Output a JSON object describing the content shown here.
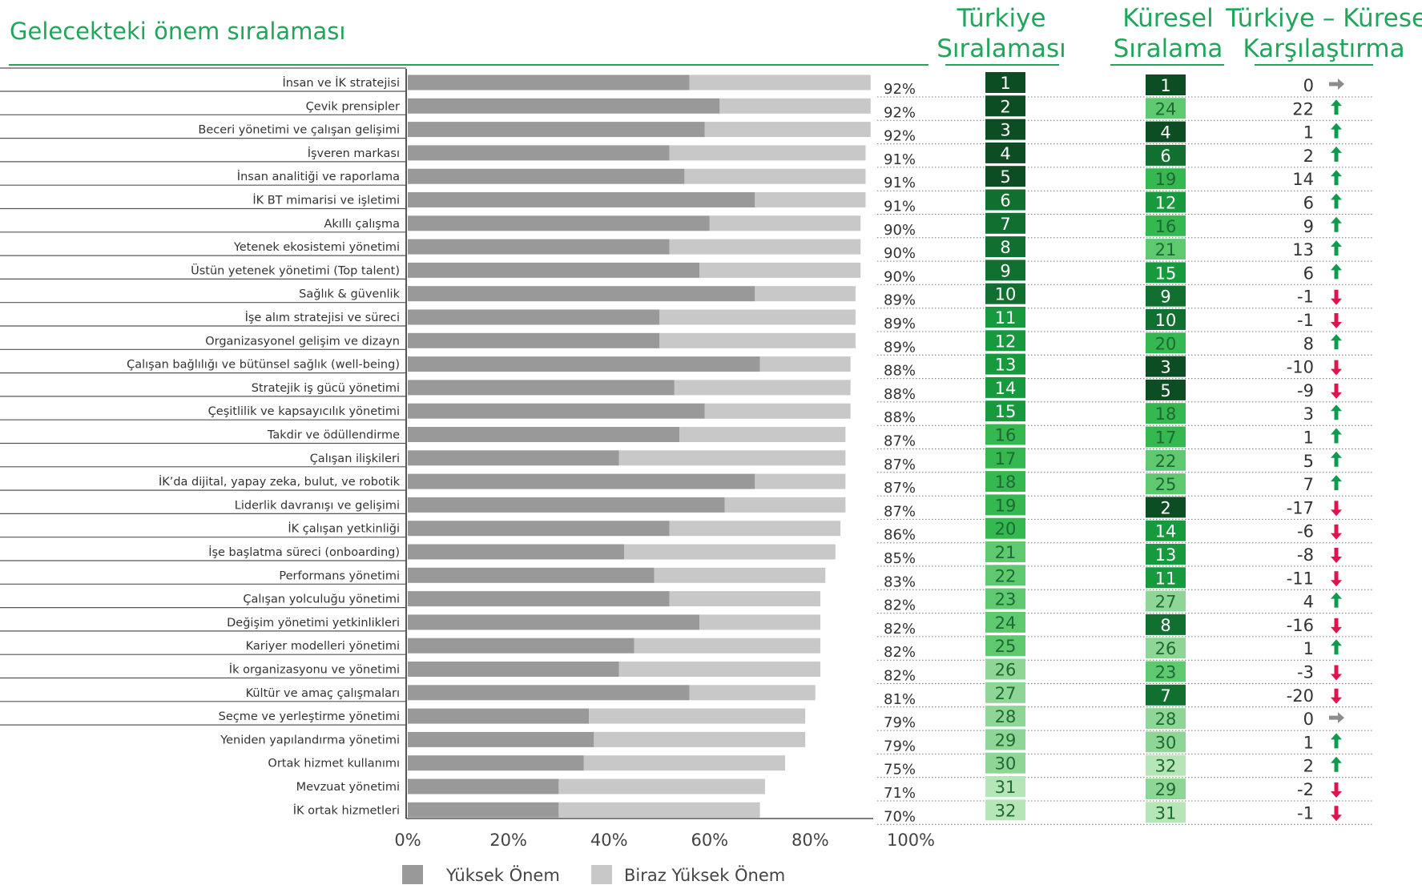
{
  "title": "Gelecekteki önem sıralaması",
  "headers": {
    "turkey_rank": [
      "Türkiye",
      "Sıralaması"
    ],
    "global_rank": [
      "Küresel",
      "Sıralama"
    ],
    "comparison": [
      "Türkiye – Küresel",
      "Karşılaştırma"
    ]
  },
  "legend": {
    "high": "Yüksek Önem",
    "somewhat": "Biraz Yüksek Önem"
  },
  "colors": {
    "accent": "#21a55b",
    "high_bar": "#999999",
    "somewhat_bar": "#c8c8c8",
    "arrow_up": "#0f9b4e",
    "arrow_down": "#e0144c",
    "arrow_neutral": "#8c8c8c",
    "rank_1_5": "#0d4d24",
    "rank_6_10": "#11702f",
    "rank_11_15": "#17993e",
    "rank_16_20": "#34b84f",
    "rank_21_25": "#5fc96f",
    "rank_26_30": "#8fd696",
    "rank_31_32": "#b6e5b8"
  },
  "chart_data": {
    "type": "bar",
    "stacked": true,
    "orientation": "horizontal",
    "xlim": [
      0,
      100
    ],
    "xticks": [
      "0%",
      "20%",
      "40%",
      "60%",
      "80%",
      "100%"
    ],
    "categories": [
      "İnsan ve İK stratejisi",
      "Çevik prensipler",
      "Beceri yönetimi ve çalışan gelişimi",
      "İşveren markası",
      "İnsan analitiği ve raporlama",
      "İK BT mimarisi ve işletimi",
      "Akıllı çalışma",
      "Yetenek ekosistemi yönetimi",
      "Üstün yetenek yönetimi (Top talent)",
      "Sağlık & güvenlik",
      "İşe alım stratejisi ve süreci",
      "Organizasyonel gelişim ve dizayn",
      "Çalışan bağlılığı ve bütünsel sağlık (well-being)",
      "Stratejik iş gücü yönetimi",
      "Çeşitlilik ve kapsayıcılık yönetimi",
      "Takdir ve ödüllendirme",
      "Çalışan ilişkileri",
      "İK’da dijital, yapay zeka, bulut, ve robotik",
      "Liderlik davranışı ve gelişimi",
      "İK çalışan yetkinliği",
      "İşe başlatma süreci (onboarding)",
      "Performans yönetimi",
      "Çalışan yolculuğu yönetimi",
      "Değişim yönetimi yetkinlikleri",
      "Kariyer modelleri yönetimi",
      "İk organizasyonu ve yönetimi",
      "Kültür ve amaç çalışmaları",
      "Seçme ve yerleştirme yönetimi",
      "Yeniden yapılandırma yönetimi",
      "Ortak hizmet kullanımı",
      "Mevzuat yönetimi",
      "İK ortak  hizmetleri"
    ],
    "series": [
      {
        "name": "Yüksek Önem",
        "values": [
          56,
          62,
          59,
          52,
          55,
          69,
          60,
          52,
          58,
          69,
          50,
          50,
          70,
          53,
          59,
          54,
          42,
          69,
          63,
          52,
          43,
          49,
          52,
          58,
          45,
          42,
          56,
          36,
          37,
          35,
          30,
          30
        ]
      },
      {
        "name": "Biraz Yüksek Önem",
        "values": [
          36,
          30,
          33,
          39,
          36,
          22,
          30,
          38,
          32,
          20,
          39,
          39,
          18,
          35,
          29,
          33,
          45,
          18,
          24,
          34,
          42,
          34,
          30,
          24,
          37,
          40,
          25,
          43,
          42,
          40,
          41,
          40
        ]
      }
    ],
    "totals": [
      "92%",
      "92%",
      "92%",
      "91%",
      "91%",
      "91%",
      "90%",
      "90%",
      "90%",
      "89%",
      "89%",
      "89%",
      "88%",
      "88%",
      "88%",
      "87%",
      "87%",
      "87%",
      "87%",
      "86%",
      "85%",
      "83%",
      "82%",
      "82%",
      "82%",
      "82%",
      "81%",
      "79%",
      "79%",
      "75%",
      "71%",
      "70%"
    ],
    "turkey_rank": [
      1,
      2,
      3,
      4,
      5,
      6,
      7,
      8,
      9,
      10,
      11,
      12,
      13,
      14,
      15,
      16,
      17,
      18,
      19,
      20,
      21,
      22,
      23,
      24,
      25,
      26,
      27,
      28,
      29,
      30,
      31,
      32
    ],
    "global_rank": [
      1,
      24,
      4,
      6,
      19,
      12,
      16,
      21,
      15,
      9,
      10,
      20,
      3,
      5,
      18,
      17,
      22,
      25,
      2,
      14,
      13,
      11,
      27,
      8,
      26,
      23,
      7,
      28,
      30,
      32,
      29,
      31
    ],
    "difference": [
      "0",
      "22",
      "1",
      "2",
      "14",
      "6",
      "9",
      "13",
      "6",
      "-1",
      "-1",
      "8",
      "-10",
      "-9",
      "3",
      "1",
      "5",
      "7",
      "-17",
      "-6",
      "-8",
      "-11",
      "4",
      "-16",
      "1",
      "-3",
      "-20",
      "0",
      "1",
      "2",
      "-2",
      "-1"
    ],
    "arrows": [
      "right",
      "up",
      "up",
      "up",
      "up",
      "up",
      "up",
      "up",
      "up",
      "down",
      "down",
      "up",
      "down",
      "down",
      "up",
      "up",
      "up",
      "up",
      "down",
      "down",
      "down",
      "down",
      "up",
      "down",
      "up",
      "down",
      "down",
      "right",
      "up",
      "up",
      "down",
      "down"
    ]
  }
}
